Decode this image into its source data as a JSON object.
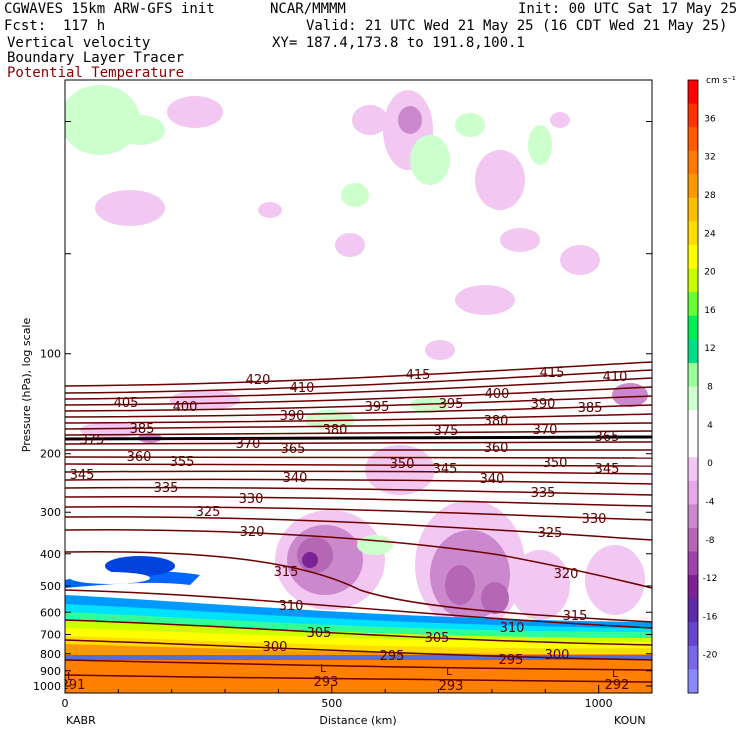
{
  "header": {
    "model": "CGWAVES 15km ARW-GFS init",
    "org": "NCAR/MMMM",
    "init": "Init: 00 UTC Sat 17 May 25",
    "fcst": "Fcst:  117 h",
    "valid": "Valid: 21 UTC Wed 21 May 25 (16 CDT Wed 21 May 25)",
    "field1": "Vertical velocity",
    "field2": "Boundary Layer Tracer",
    "field3": "Potential Temperature",
    "xy": "XY= 187.4,173.8 to 191.8,100.1"
  },
  "colors": {
    "theta": "#6b0000",
    "field3_text": "#8b0000"
  },
  "chart_data": {
    "type": "heatmap",
    "title": "",
    "xlabel": "Distance (km)",
    "ylabel": "Pressure (hPa), log scale",
    "y_scale": "log",
    "x_ticks": [
      0,
      500,
      1000
    ],
    "y_ticks": [
      100,
      200,
      300,
      400,
      500,
      600,
      700,
      800,
      900,
      1000
    ],
    "xlim": [
      0,
      1100
    ],
    "ylim": [
      1050,
      15
    ],
    "endpoints": {
      "left": "KABR",
      "right": "KOUN"
    },
    "colorbar": {
      "unit": "cm s⁻¹",
      "ticks": [
        36,
        32,
        28,
        24,
        20,
        16,
        12,
        8,
        4,
        0,
        -4,
        -8,
        -12,
        -16,
        -20
      ],
      "colors": [
        "#ff0000",
        "#ff3300",
        "#ff5a00",
        "#ff7a00",
        "#ff9900",
        "#ffbf00",
        "#ffdd00",
        "#ffff00",
        "#c8ff00",
        "#66ff33",
        "#00ee55",
        "#00dd88",
        "#99ff99",
        "#cfffcf",
        "#ffffff",
        "#ffffff",
        "#f2c8f2",
        "#e6a8e6",
        "#cc88cc",
        "#b566b5",
        "#9a44a8",
        "#7a2296",
        "#5a2aa8",
        "#6644cc",
        "#7766e6",
        "#8a88ff"
      ]
    },
    "theta_contours": [
      {
        "value": 420,
        "lx": 258,
        "ly": 384
      },
      {
        "value": 415,
        "lx": 418,
        "ly": 379
      },
      {
        "value": 415,
        "lx": 552,
        "ly": 377
      },
      {
        "value": 410,
        "lx": 302,
        "ly": 392
      },
      {
        "value": 410,
        "lx": 615,
        "ly": 381
      },
      {
        "value": 405,
        "lx": 126,
        "ly": 407
      },
      {
        "value": 400,
        "lx": 185,
        "ly": 411
      },
      {
        "value": 400,
        "lx": 497,
        "ly": 398
      },
      {
        "value": 395,
        "lx": 377,
        "ly": 411
      },
      {
        "value": 395,
        "lx": 451,
        "ly": 408
      },
      {
        "value": 390,
        "lx": 292,
        "ly": 420
      },
      {
        "value": 390,
        "lx": 543,
        "ly": 408
      },
      {
        "value": 385,
        "lx": 142,
        "ly": 433
      },
      {
        "value": 385,
        "lx": 590,
        "ly": 412
      },
      {
        "value": 380,
        "lx": 335,
        "ly": 434
      },
      {
        "value": 380,
        "lx": 496,
        "ly": 425
      },
      {
        "value": 375,
        "lx": 92,
        "ly": 444
      },
      {
        "value": 375,
        "lx": 446,
        "ly": 435
      },
      {
        "value": 370,
        "lx": 248,
        "ly": 448
      },
      {
        "value": 370,
        "lx": 545,
        "ly": 434
      },
      {
        "value": 365,
        "lx": 293,
        "ly": 453
      },
      {
        "value": 365,
        "lx": 607,
        "ly": 441
      },
      {
        "value": 360,
        "lx": 139,
        "ly": 461
      },
      {
        "value": 360,
        "lx": 496,
        "ly": 452
      },
      {
        "value": 355,
        "lx": 182,
        "ly": 466
      },
      {
        "value": 350,
        "lx": 402,
        "ly": 468
      },
      {
        "value": 350,
        "lx": 555,
        "ly": 467
      },
      {
        "value": 345,
        "lx": 82,
        "ly": 479
      },
      {
        "value": 345,
        "lx": 445,
        "ly": 473
      },
      {
        "value": 345,
        "lx": 607,
        "ly": 473
      },
      {
        "value": 340,
        "lx": 295,
        "ly": 482
      },
      {
        "value": 340,
        "lx": 492,
        "ly": 483
      },
      {
        "value": 335,
        "lx": 166,
        "ly": 492
      },
      {
        "value": 335,
        "lx": 543,
        "ly": 497
      },
      {
        "value": 330,
        "lx": 251,
        "ly": 503
      },
      {
        "value": 330,
        "lx": 594,
        "ly": 523
      },
      {
        "value": 325,
        "lx": 208,
        "ly": 516
      },
      {
        "value": 325,
        "lx": 550,
        "ly": 537
      },
      {
        "value": 320,
        "lx": 252,
        "ly": 536
      },
      {
        "value": 320,
        "lx": 566,
        "ly": 578
      },
      {
        "value": 315,
        "lx": 286,
        "ly": 576
      },
      {
        "value": 315,
        "lx": 575,
        "ly": 620
      },
      {
        "value": 310,
        "lx": 291,
        "ly": 610
      },
      {
        "value": 310,
        "lx": 512,
        "ly": 632
      },
      {
        "value": 305,
        "lx": 319,
        "ly": 637
      },
      {
        "value": 305,
        "lx": 437,
        "ly": 642
      },
      {
        "value": 300,
        "lx": 275,
        "ly": 651
      },
      {
        "value": 300,
        "lx": 557,
        "ly": 659
      },
      {
        "value": 295,
        "lx": 392,
        "ly": 660
      },
      {
        "value": 295,
        "lx": 511,
        "ly": 664
      },
      {
        "value": 293,
        "lx": 326,
        "ly": 686
      },
      {
        "value": 293,
        "lx": 451,
        "ly": 690
      },
      {
        "value": 292,
        "lx": 617,
        "ly": 689
      },
      {
        "value": 291,
        "lx": 73,
        "ly": 689
      }
    ],
    "low_markers": [
      "L",
      "L",
      "L",
      "L"
    ]
  }
}
